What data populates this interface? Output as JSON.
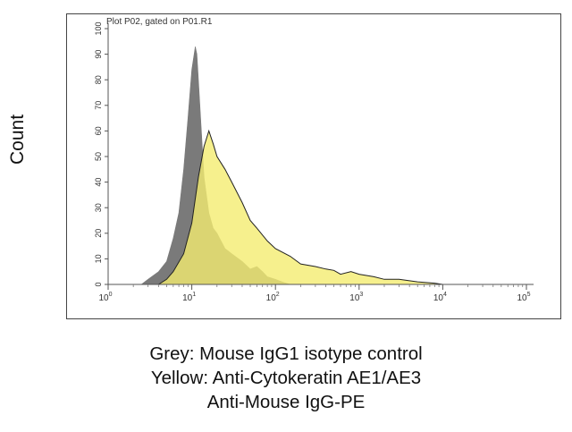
{
  "y_axis_title": "Count",
  "captions": {
    "line1": "Grey: Mouse IgG1 isotype control",
    "line2": "Yellow: Anti-Cytokeratin AE1/AE3",
    "line3": "Anti-Mouse IgG-PE"
  },
  "chart_data": {
    "type": "area",
    "title": "Plot P02, gated on P01.R1",
    "xlabel": "",
    "ylabel": "Count",
    "xscale": "log",
    "xlim": [
      1,
      100000
    ],
    "ylim": [
      0,
      100
    ],
    "xticks": [
      1,
      10,
      100,
      1000,
      10000,
      100000
    ],
    "xtick_labels": [
      "10^0",
      "10^1",
      "10^2",
      "10^3",
      "10^4",
      "10^5"
    ],
    "yticks": [
      0,
      10,
      20,
      30,
      40,
      50,
      60,
      70,
      80,
      90,
      100
    ],
    "ytick_labels": [
      "0",
      "10",
      "20",
      "30",
      "40",
      "50",
      "60",
      "70",
      "80",
      "90",
      "100"
    ],
    "grid": false,
    "legend": "none",
    "series": [
      {
        "fill": "#7a7a7a",
        "x": [
          2.5,
          3,
          4,
          5,
          6,
          7,
          8,
          9,
          10,
          11,
          11.5,
          12,
          13,
          14,
          16,
          18,
          20,
          25,
          30,
          40,
          50,
          60,
          70,
          80,
          100,
          120,
          150
        ],
        "y": [
          0,
          2,
          5,
          9,
          18,
          28,
          45,
          65,
          84,
          93,
          90,
          80,
          60,
          42,
          28,
          22,
          20,
          14,
          12,
          9,
          6,
          7,
          5,
          3,
          2,
          1,
          0
        ]
      },
      {
        "fill": "#f4ec70",
        "x": [
          4,
          5,
          6,
          8,
          10,
          12,
          14,
          16,
          18,
          20,
          25,
          30,
          40,
          50,
          60,
          80,
          100,
          150,
          200,
          300,
          400,
          500,
          600,
          800,
          1000,
          1500,
          2000,
          3000,
          5000,
          8000,
          10000
        ],
        "y": [
          0,
          2,
          5,
          12,
          24,
          42,
          54,
          60,
          55,
          50,
          45,
          40,
          32,
          25,
          22,
          17,
          14,
          11,
          8,
          7,
          6,
          5.5,
          4,
          5,
          4,
          3,
          2,
          2,
          1,
          0.5,
          0
        ]
      }
    ]
  }
}
